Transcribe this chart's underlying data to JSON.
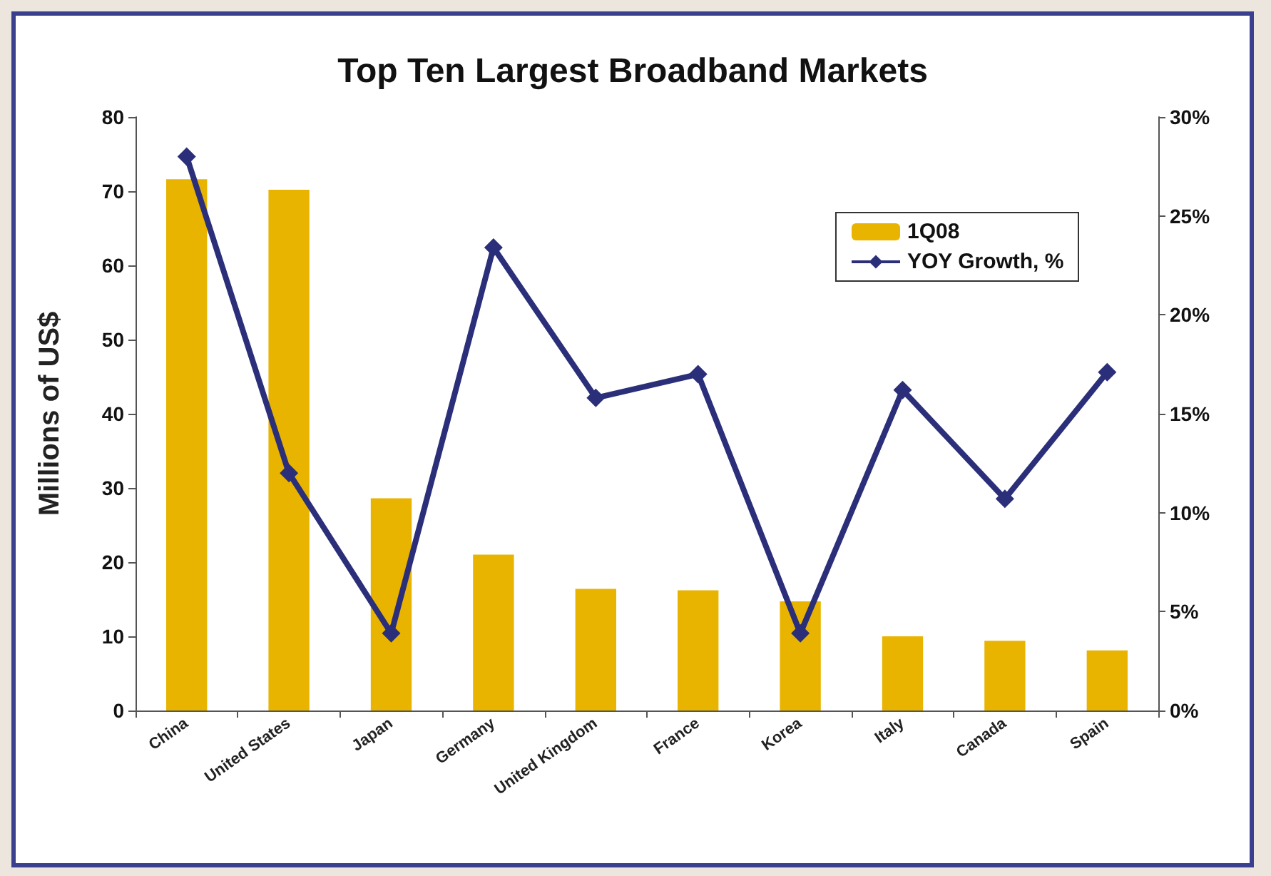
{
  "chart_data": {
    "type": "bar",
    "title": "Top Ten Largest Broadband Markets",
    "ylabel": "Millions of US$",
    "categories": [
      "China",
      "United States",
      "Japan",
      "Germany",
      "United Kingdom",
      "France",
      "Korea",
      "Italy",
      "Canada",
      "Spain"
    ],
    "series": [
      {
        "name": "1Q08",
        "color": "#e8b400",
        "values": [
          71.6,
          70.2,
          28.6,
          21,
          16.4,
          16.2,
          14.7,
          10,
          9.4,
          8.1
        ]
      },
      {
        "name": "YOY Growth, %",
        "type": "line",
        "axis": "y2",
        "color": "#2b2f7a",
        "marker": "diamond",
        "values": [
          28,
          12,
          3.9,
          23.4,
          15.8,
          17,
          3.9,
          16.2,
          10.7,
          17.1
        ]
      }
    ],
    "ylim": [
      0,
      80
    ],
    "yticks": [
      0,
      10,
      20,
      30,
      40,
      50,
      60,
      70,
      80
    ],
    "y2lim": [
      0,
      30
    ],
    "y2ticks": [
      {
        "value": 0,
        "label": "0%"
      },
      {
        "value": 5,
        "label": "5%"
      },
      {
        "value": 10,
        "label": "10%"
      },
      {
        "value": 15,
        "label": "15%"
      },
      {
        "value": 20,
        "label": "20%"
      },
      {
        "value": 25,
        "label": "25%"
      },
      {
        "value": 30,
        "label": "30%"
      }
    ],
    "grid": false,
    "legend": "top right"
  }
}
